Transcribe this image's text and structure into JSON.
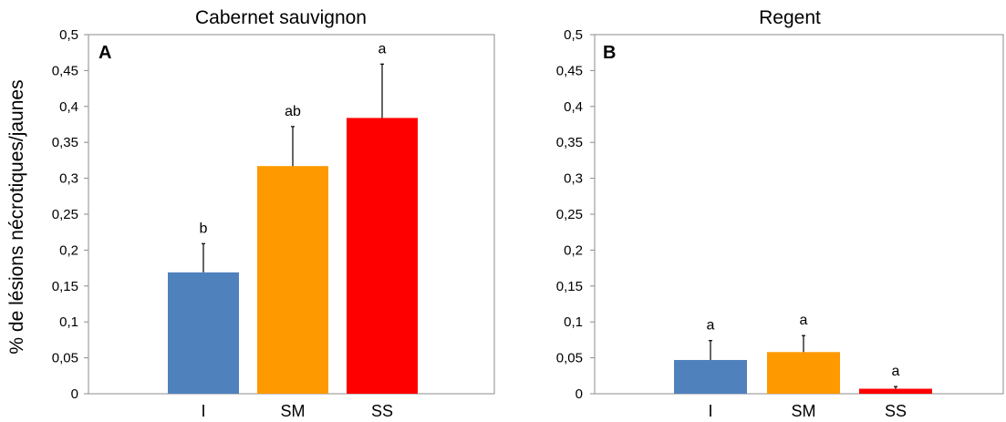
{
  "ylabel": "% de lésions nécrotiques/jaunes",
  "chart_data": [
    {
      "type": "bar",
      "panel": "A",
      "title": "Cabernet sauvignon",
      "ylabel": "% de lésions nécrotiques/jaunes",
      "ylim": [
        0,
        0.5
      ],
      "yticks": [
        "0",
        "0,05",
        "0,1",
        "0,15",
        "0,2",
        "0,25",
        "0,3",
        "0,35",
        "0,4",
        "0,45",
        "0,5"
      ],
      "categories": [
        "I",
        "SM",
        "SS"
      ],
      "values": [
        0.169,
        0.317,
        0.384
      ],
      "errors": [
        0.04,
        0.055,
        0.075
      ],
      "significance": [
        "b",
        "ab",
        "a"
      ],
      "colors": [
        "#4F81BD",
        "#FF9900",
        "#FF0000"
      ],
      "grid": false
    },
    {
      "type": "bar",
      "panel": "B",
      "title": "Regent",
      "ylim": [
        0,
        0.5
      ],
      "yticks": [
        "0",
        "0,05",
        "0,1",
        "0,15",
        "0,2",
        "0,25",
        "0,3",
        "0,35",
        "0,4",
        "0,45",
        "0,5"
      ],
      "categories": [
        "I",
        "SM",
        "SS"
      ],
      "values": [
        0.047,
        0.058,
        0.007
      ],
      "errors": [
        0.027,
        0.023,
        0.003
      ],
      "significance": [
        "a",
        "a",
        "a"
      ],
      "colors": [
        "#4F81BD",
        "#FF9900",
        "#FF0000"
      ],
      "grid": false
    }
  ]
}
